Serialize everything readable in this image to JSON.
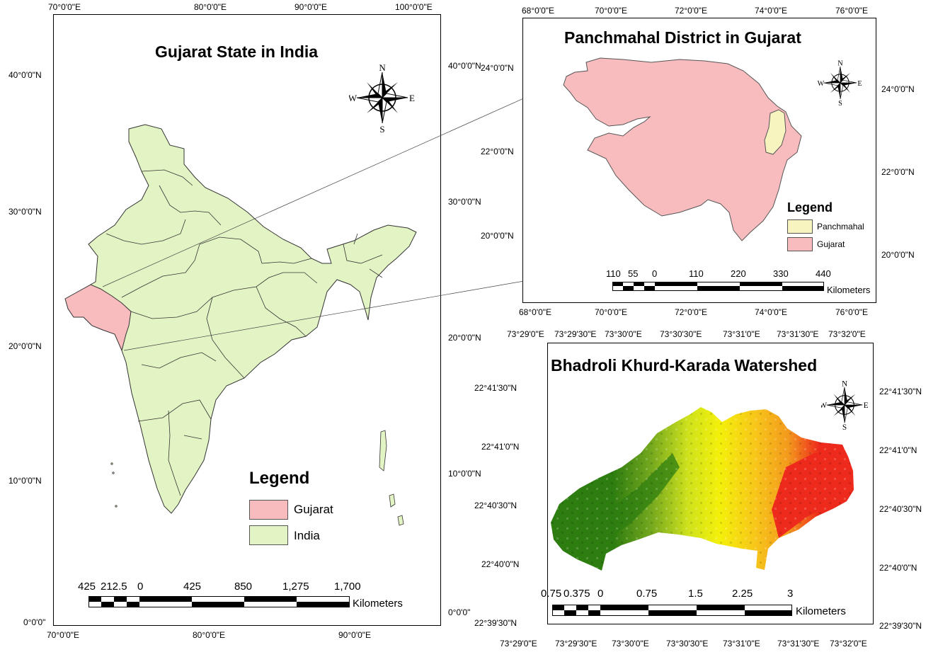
{
  "colors": {
    "gujarat": "#f8bcbf",
    "india": "#e3f4c4",
    "panchmahal": "#f8f4c0",
    "ws_dark_green": "#2e7d10",
    "ws_green": "#74a81e",
    "ws_yellow": "#f4f00a",
    "ws_orange": "#f39a1c",
    "ws_red": "#ee2a1c"
  },
  "compass": {
    "n": "N",
    "s": "S",
    "e": "E",
    "w": "W",
    "icon": "compass-rose-icon"
  },
  "india_map": {
    "title": "Gujarat State in India",
    "top_ticks": [
      "70°0'0\"E",
      "80°0'0\"E",
      "90°0'0\"E",
      "100°0'0\"E"
    ],
    "bottom_ticks": [
      "70°0'0\"E",
      "80°0'0\"E",
      "90°0'0\"E"
    ],
    "left_ticks": [
      "40°0'0\"N",
      "30°0'0\"N",
      "20°0'0\"N",
      "10°0'0\"N",
      "0°0'0\""
    ],
    "right_ticks": [
      "40°0'0\"N",
      "30°0'0\"N",
      "20°0'0\"N",
      "10°0'0\"N",
      "0°0'0\""
    ],
    "legend": {
      "title": "Legend",
      "items": [
        {
          "label": "Gujarat"
        },
        {
          "label": "India"
        }
      ]
    },
    "scale": {
      "labels": [
        "425",
        "212.5",
        "0",
        "425",
        "850",
        "1,275",
        "1,700"
      ],
      "units": "Kilometers"
    }
  },
  "district_map": {
    "title": "Panchmahal District in Gujarat",
    "top_ticks": [
      "68°0'0\"E",
      "70°0'0\"E",
      "72°0'0\"E",
      "74°0'0\"E",
      "76°0'0\"E"
    ],
    "bottom_ticks": [
      "68°0'0\"E",
      "70°0'0\"E",
      "72°0'0\"E",
      "74°0'0\"E",
      "76°0'0\"E"
    ],
    "left_ticks": [
      "24°0'0\"N",
      "22°0'0\"N",
      "20°0'0\"N"
    ],
    "right_ticks": [
      "24°0'0\"N",
      "22°0'0\"N",
      "20°0'0\"N"
    ],
    "legend": {
      "title": "Legend",
      "items": [
        {
          "label": "Panchmahal"
        },
        {
          "label": "Gujarat"
        }
      ]
    },
    "scale": {
      "labels": [
        "110",
        "55",
        "0",
        "110",
        "220",
        "330",
        "440"
      ],
      "units": "Kilometers"
    }
  },
  "watershed_map": {
    "title": "Bhadroli Khurd-Karada Watershed",
    "top_ticks": [
      "73°29'0\"E",
      "73°29'30\"E",
      "73°30'0\"E",
      "73°30'30\"E",
      "73°31'0\"E",
      "73°31'30\"E",
      "73°32'0\"E"
    ],
    "bottom_ticks": [
      "73°29'0\"E",
      "73°29'30\"E",
      "73°30'0\"E",
      "73°30'30\"E",
      "73°31'0\"E",
      "73°31'30\"E",
      "73°32'0\"E"
    ],
    "left_ticks": [
      "22°41'30\"N",
      "22°41'0\"N",
      "22°40'30\"N",
      "22°40'0\"N",
      "22°39'30\"N"
    ],
    "right_ticks": [
      "22°41'30\"N",
      "22°41'0\"N",
      "22°40'30\"N",
      "22°40'0\"N",
      "22°39'30\"N"
    ],
    "scale": {
      "labels": [
        "0.75",
        "0.375",
        "0",
        "0.75",
        "1.5",
        "2.25",
        "3"
      ],
      "units": "Kilometers"
    }
  }
}
